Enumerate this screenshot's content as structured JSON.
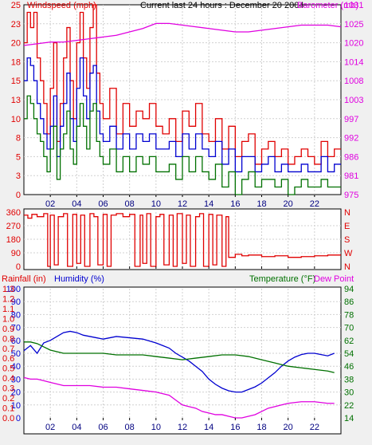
{
  "header": {
    "left_label": "Windspeed (mph)",
    "center_label": "Current last 24 hours : December 20 2004",
    "right_label": "Barometer (mb)"
  },
  "colors": {
    "red": "#e00000",
    "blue": "#0000d0",
    "green": "#007000",
    "magenta": "#e000e0",
    "grid": "#d0d0d0",
    "frame": "#000000"
  },
  "chart_data": [
    {
      "type": "line",
      "name": "wind-barometer",
      "title": "Current last 24 hours : December 20 2004",
      "ylabel": "Windspeed (mph)",
      "y2label": "Barometer (mb)",
      "x_ticks": [
        "02",
        "04",
        "06",
        "08",
        "10",
        "12",
        "14",
        "16",
        "18",
        "20",
        "22"
      ],
      "x_range": [
        0,
        24
      ],
      "y_ticks": [
        "0",
        "3",
        "5",
        "8",
        "10",
        "13",
        "15",
        "18",
        "20",
        "23",
        "25"
      ],
      "ylim": [
        0,
        25
      ],
      "y2_ticks": [
        "975",
        "981",
        "986",
        "992",
        "997",
        "1003",
        "1008",
        "1014",
        "1020",
        "1025",
        "1031"
      ],
      "y2lim": [
        975,
        1031
      ],
      "series": [
        {
          "color": "red",
          "axis": "left",
          "style": "step",
          "x": [
            0,
            0.25,
            0.5,
            0.75,
            1,
            1.25,
            1.5,
            1.75,
            2,
            2.25,
            2.5,
            2.75,
            3,
            3.25,
            3.5,
            3.75,
            4,
            4.25,
            4.5,
            4.75,
            5,
            5.25,
            5.5,
            5.75,
            6,
            6.5,
            7,
            7.5,
            8,
            8.5,
            9,
            9.5,
            10,
            10.5,
            11,
            11.5,
            12,
            12.5,
            13,
            13.5,
            14,
            14.5,
            15,
            15.5,
            16,
            16.5,
            17,
            17.5,
            18,
            18.5,
            19,
            19.5,
            20,
            20.5,
            21,
            21.5,
            22,
            22.5,
            23,
            23.5
          ],
          "values": [
            20,
            24,
            22,
            24,
            18,
            15,
            12,
            8,
            14,
            20,
            7,
            12,
            18,
            22,
            15,
            10,
            20,
            24,
            18,
            14,
            22,
            25,
            16,
            12,
            10,
            14,
            8,
            12,
            9,
            11,
            10,
            12,
            9,
            8,
            10,
            7,
            11,
            9,
            12,
            8,
            7,
            10,
            6,
            9,
            5,
            7,
            8,
            4,
            6,
            7,
            5,
            6,
            4,
            5,
            6,
            5,
            4,
            7,
            5,
            6
          ]
        },
        {
          "color": "blue",
          "axis": "left",
          "style": "step",
          "x": [
            0,
            0.25,
            0.5,
            0.75,
            1,
            1.25,
            1.5,
            1.75,
            2,
            2.25,
            2.5,
            2.75,
            3,
            3.25,
            3.5,
            3.75,
            4,
            4.25,
            4.5,
            4.75,
            5,
            5.25,
            5.5,
            5.75,
            6,
            6.5,
            7,
            7.5,
            8,
            8.5,
            9,
            9.5,
            10,
            10.5,
            11,
            11.5,
            12,
            12.5,
            13,
            13.5,
            14,
            14.5,
            15,
            15.5,
            16,
            16.5,
            17,
            17.5,
            18,
            18.5,
            19,
            19.5,
            20,
            20.5,
            21,
            21.5,
            22,
            22.5,
            23,
            23.5
          ],
          "values": [
            15,
            18,
            17,
            15,
            12,
            10,
            8,
            6,
            9,
            13,
            5,
            9,
            12,
            16,
            10,
            7,
            14,
            18,
            13,
            10,
            16,
            17,
            11,
            8,
            7,
            9,
            6,
            8,
            6,
            8,
            7,
            8,
            6,
            6,
            7,
            5,
            8,
            6,
            8,
            6,
            5,
            7,
            4,
            6,
            3,
            5,
            5,
            3,
            4,
            5,
            3,
            4,
            3,
            3,
            4,
            3,
            3,
            5,
            3,
            4
          ]
        },
        {
          "color": "green",
          "axis": "left",
          "style": "step",
          "x": [
            0,
            0.25,
            0.5,
            0.75,
            1,
            1.25,
            1.5,
            1.75,
            2,
            2.25,
            2.5,
            2.75,
            3,
            3.25,
            3.5,
            3.75,
            4,
            4.25,
            4.5,
            4.75,
            5,
            5.25,
            5.5,
            5.75,
            6,
            6.5,
            7,
            7.5,
            8,
            8.5,
            9,
            9.5,
            10,
            10.5,
            11,
            11.5,
            12,
            12.5,
            13,
            13.5,
            14,
            14.5,
            15,
            15.5,
            16,
            16.5,
            17,
            17.5,
            18,
            18.5,
            19,
            19.5,
            20,
            20.5,
            21,
            21.5,
            22,
            22.5,
            23,
            23.5
          ],
          "values": [
            10,
            13,
            12,
            10,
            8,
            7,
            5,
            3,
            6,
            9,
            2,
            6,
            8,
            11,
            6,
            4,
            9,
            12,
            9,
            6,
            11,
            12,
            7,
            5,
            4,
            6,
            3,
            5,
            3,
            5,
            4,
            5,
            3,
            3,
            4,
            2,
            5,
            3,
            5,
            3,
            2,
            4,
            1,
            3,
            0,
            2,
            3,
            1,
            2,
            2,
            1,
            2,
            0,
            1,
            2,
            1,
            1,
            2,
            1,
            1
          ]
        },
        {
          "color": "magenta",
          "axis": "right",
          "style": "line",
          "x": [
            0,
            1,
            2,
            3,
            4,
            5,
            6,
            7,
            8,
            9,
            10,
            11,
            12,
            13,
            14,
            15,
            16,
            17,
            18,
            19,
            20,
            21,
            22,
            23,
            24
          ],
          "values": [
            1019,
            1019.5,
            1020,
            1020,
            1020.5,
            1021,
            1021.5,
            1022,
            1023,
            1024,
            1025.5,
            1025.5,
            1025,
            1024.5,
            1024,
            1023.5,
            1023,
            1023,
            1023.5,
            1024,
            1024.5,
            1025,
            1025,
            1025,
            1024.5
          ]
        }
      ]
    },
    {
      "type": "line",
      "name": "wind-direction",
      "y_ticks": [
        "0",
        "90",
        "180",
        "270",
        "360"
      ],
      "ylim": [
        0,
        360
      ],
      "y2_ticks": [
        "N",
        "W",
        "S",
        "E",
        "N"
      ],
      "series": [
        {
          "color": "red",
          "axis": "left",
          "style": "step",
          "x": [
            0,
            0.3,
            0.6,
            1,
            1.5,
            1.8,
            2,
            2.3,
            2.6,
            3,
            3.3,
            3.7,
            4,
            4.3,
            4.6,
            5,
            5.3,
            5.6,
            6,
            6.3,
            6.6,
            7,
            7.5,
            8,
            8.4,
            8.8,
            9,
            9.3,
            9.6,
            10,
            10.3,
            10.6,
            11,
            11.3,
            11.6,
            12,
            12.3,
            12.6,
            13,
            13.3,
            13.6,
            14,
            14.3,
            14.6,
            15,
            15.3,
            15.5,
            16,
            16.5,
            17,
            18,
            19,
            20,
            21,
            22,
            23
          ],
          "values": [
            340,
            320,
            345,
            330,
            350,
            0,
            340,
            10,
            330,
            350,
            0,
            345,
            20,
            340,
            0,
            350,
            330,
            10,
            345,
            0,
            340,
            350,
            330,
            345,
            0,
            340,
            20,
            350,
            0,
            330,
            345,
            10,
            340,
            0,
            350,
            20,
            340,
            0,
            330,
            350,
            0,
            345,
            10,
            340,
            0,
            330,
            60,
            80,
            70,
            75,
            65,
            70,
            60,
            65,
            70,
            75
          ]
        }
      ]
    },
    {
      "type": "line",
      "name": "rain-humidity-temperature",
      "left_label_1": "Rainfall (in)",
      "left_label_2": "Humidity (%)",
      "right_label_1": "Temperature (°F)",
      "right_label_2": "Dew Point",
      "y_ticks_rain": [
        "0.0",
        "0.1",
        "0.2",
        "0.3",
        "0.4",
        "0.5",
        "0.6",
        "0.7",
        "0.8",
        "0.9",
        "1.0",
        "1.1",
        "1.2",
        "1.3"
      ],
      "y_ticks_hum": [
        "0",
        "10",
        "20",
        "30",
        "40",
        "50",
        "60",
        "70",
        "80",
        "90",
        "100"
      ],
      "ylim": [
        0,
        100
      ],
      "y2_ticks": [
        "14",
        "22",
        "30",
        "38",
        "46",
        "54",
        "62",
        "70",
        "78",
        "86",
        "94"
      ],
      "y2lim": [
        14,
        94
      ],
      "series": [
        {
          "color": "blue",
          "axis": "left",
          "style": "line",
          "x": [
            0,
            0.5,
            1,
            1.5,
            2,
            2.5,
            3,
            3.5,
            4,
            4.5,
            5,
            5.5,
            6,
            6.5,
            7,
            8,
            9,
            10,
            10.5,
            11,
            11.5,
            12,
            12.5,
            13,
            13.5,
            14,
            14.5,
            15,
            15.5,
            16,
            16.5,
            17,
            17.5,
            18,
            18.5,
            19,
            19.5,
            20,
            20.5,
            21,
            21.5,
            22,
            22.5,
            23,
            23.5
          ],
          "values": [
            52,
            56,
            50,
            58,
            60,
            63,
            66,
            67,
            66,
            64,
            63,
            62,
            61,
            62,
            63,
            62,
            61,
            58,
            56,
            54,
            50,
            47,
            44,
            40,
            36,
            30,
            26,
            23,
            21,
            20,
            20,
            22,
            24,
            27,
            31,
            35,
            40,
            44,
            47,
            49,
            50,
            50,
            49,
            48,
            50
          ]
        },
        {
          "color": "green",
          "axis": "right",
          "style": "line",
          "x": [
            0,
            0.5,
            1,
            1.5,
            2,
            2.5,
            3,
            3.5,
            4,
            5,
            6,
            7,
            8,
            9,
            10,
            11,
            12,
            13,
            14,
            15,
            16,
            17,
            18,
            19,
            20,
            21,
            22,
            23,
            23.5
          ],
          "values": [
            61,
            61,
            60,
            58,
            56,
            55,
            54,
            54,
            54,
            54,
            54,
            53,
            53,
            53,
            52,
            51,
            50,
            51,
            52,
            53,
            53,
            52,
            50,
            48,
            46,
            45,
            44,
            43,
            42
          ]
        },
        {
          "color": "magenta",
          "axis": "right",
          "style": "line",
          "x": [
            0,
            0.5,
            1,
            1.5,
            2,
            2.5,
            3,
            4,
            5,
            6,
            7,
            8,
            9,
            10,
            11,
            11.5,
            12,
            12.5,
            13,
            13.5,
            14,
            14.5,
            15,
            15.5,
            16,
            16.5,
            17,
            17.5,
            18,
            18.5,
            19,
            19.5,
            20,
            21,
            22,
            23,
            23.5
          ],
          "values": [
            39,
            38,
            38,
            37,
            36,
            35,
            34,
            34,
            34,
            33,
            33,
            32,
            31,
            30,
            28,
            25,
            22,
            21,
            20,
            18,
            17,
            16,
            16,
            15,
            14,
            14,
            15,
            16,
            18,
            20,
            21,
            22,
            23,
            24,
            24,
            23,
            23
          ]
        }
      ]
    }
  ]
}
